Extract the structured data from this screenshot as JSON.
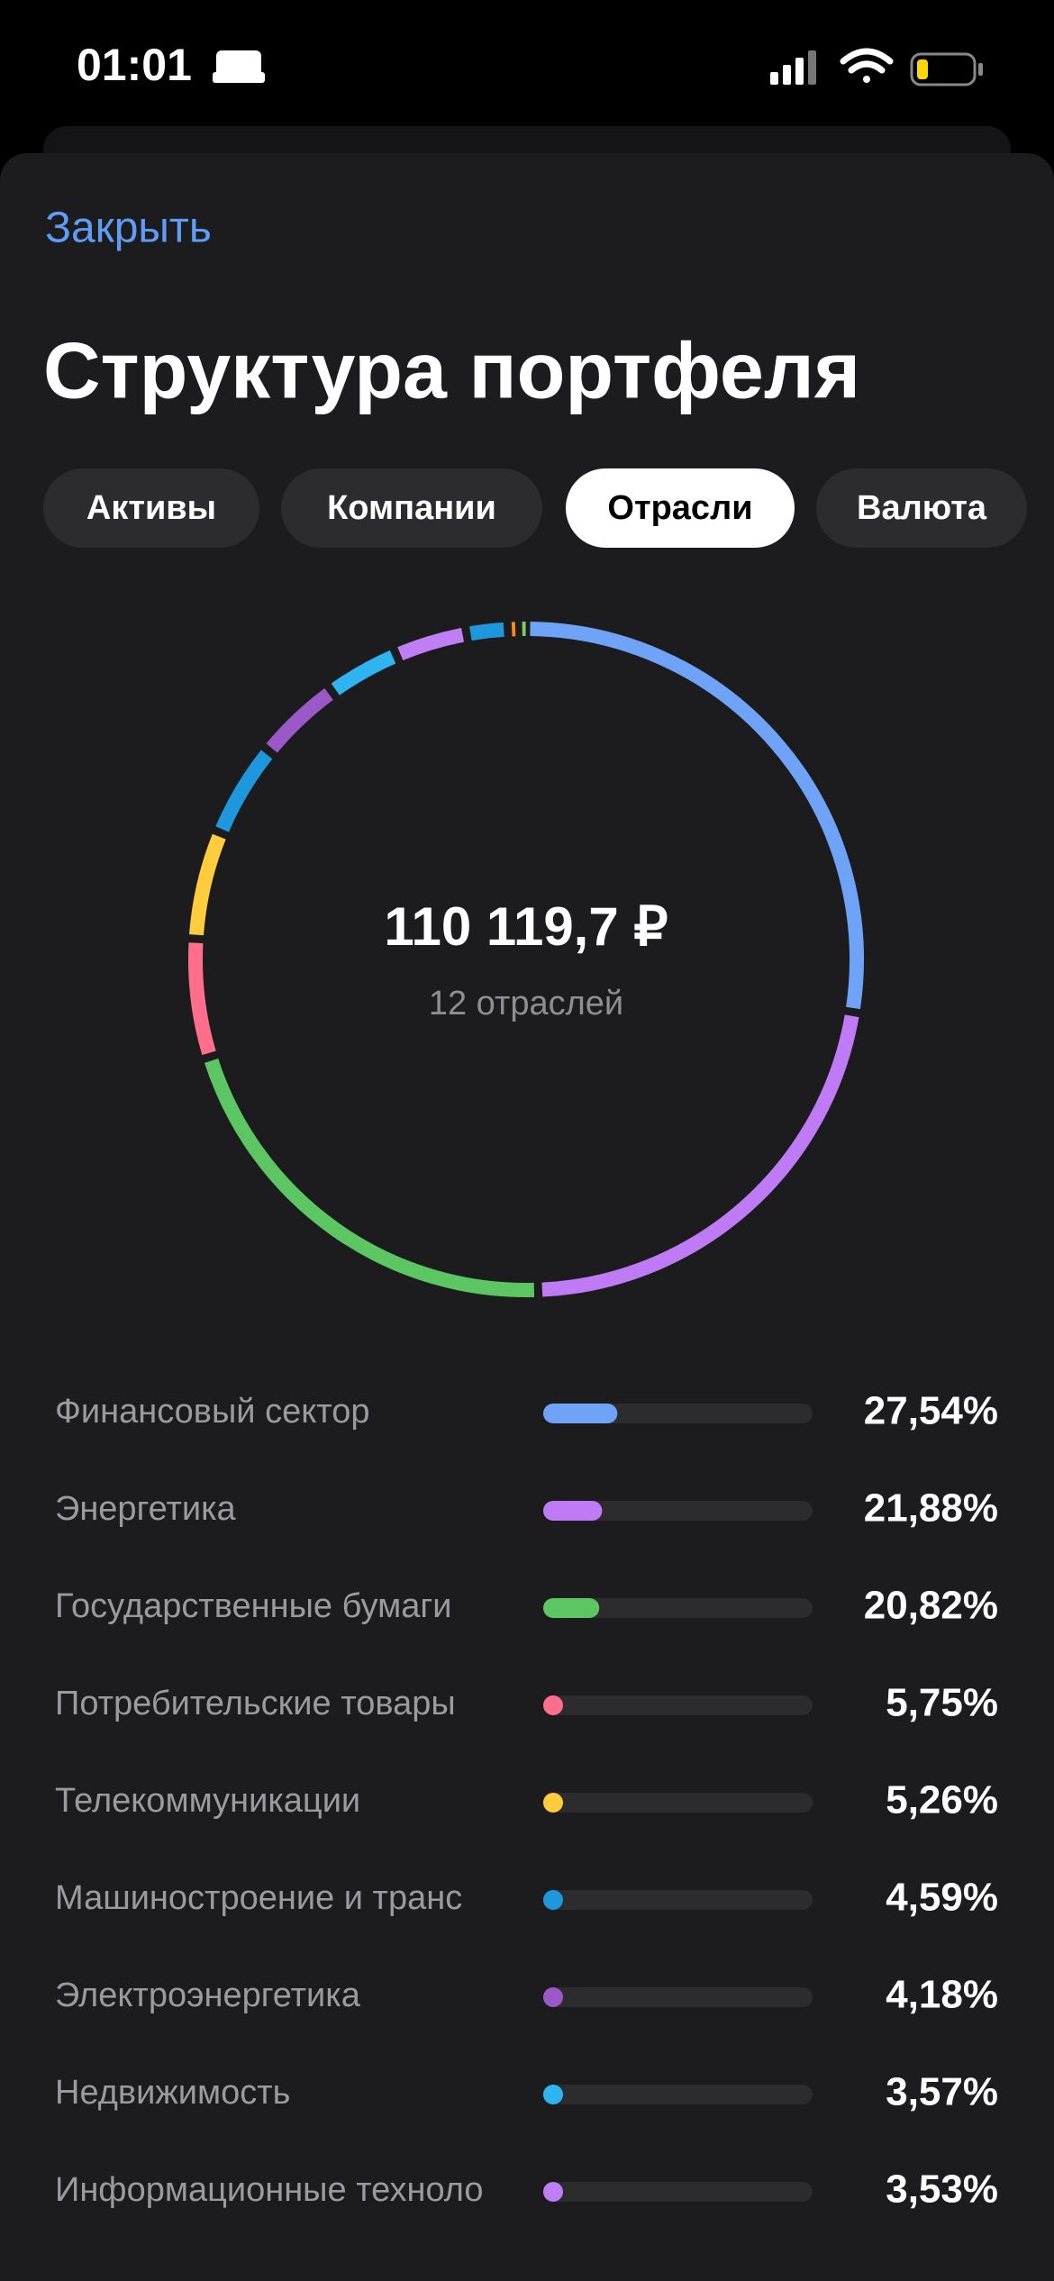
{
  "status_bar": {
    "time": "01:01"
  },
  "header": {
    "close": "Закрыть",
    "title": "Структура портфеля"
  },
  "tabs": [
    "Активы",
    "Компании",
    "Отрасли",
    "Валюта"
  ],
  "active_tab": 2,
  "summary": {
    "total": "110 119,7 ₽",
    "count": "12 отраслей"
  },
  "industries": [
    {
      "name": "Финансовый сектор",
      "value": 27.54,
      "value_label": "27,54%",
      "color": "#6fa3f7"
    },
    {
      "name": "Энергетика",
      "value": 21.88,
      "value_label": "21,88%",
      "color": "#bf7af5"
    },
    {
      "name": "Государственные бумаги",
      "value": 20.82,
      "value_label": "20,82%",
      "color": "#5cc663"
    },
    {
      "name": "Потребительские товары",
      "value": 5.75,
      "value_label": "5,75%",
      "color": "#ff6f8b"
    },
    {
      "name": "Телекоммуникации",
      "value": 5.26,
      "value_label": "5,26%",
      "color": "#ffcc3d"
    },
    {
      "name": "Машиностроение и транс",
      "value": 4.59,
      "value_label": "4,59%",
      "color": "#1e98dd"
    },
    {
      "name": "Электроэнергетика",
      "value": 4.18,
      "value_label": "4,18%",
      "color": "#9b59c8"
    },
    {
      "name": "Недвижимость",
      "value": 3.57,
      "value_label": "3,57%",
      "color": "#2fb4f2"
    },
    {
      "name": "Информационные техноло",
      "value": 3.53,
      "value_label": "3,53%",
      "color": "#c07ef5"
    }
  ],
  "hidden_segments": [
    {
      "value": 2.0,
      "color": "#1e98dd"
    },
    {
      "value": 0.5,
      "color": "#ff8a1f"
    },
    {
      "value": 0.38,
      "color": "#7ccc5f"
    }
  ]
}
